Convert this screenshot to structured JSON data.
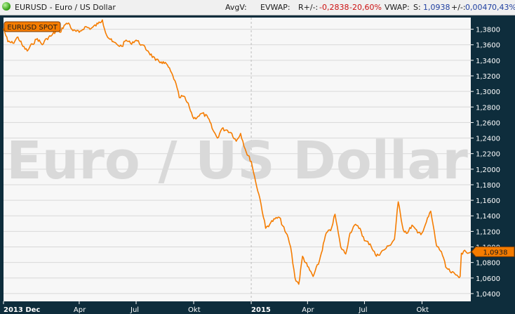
{
  "header": {
    "title": "EURUSD - Euro / US Dollar",
    "avgv_label": "AvgV:",
    "evwap_label": "EVWAP:",
    "range_label": "R+/-:",
    "range_abs": "-0,2838",
    "range_pct": "-20,60%",
    "vwap_label": "VWAP:",
    "s_label": "S:",
    "s_value": "1,0938",
    "change_label": "+/-:",
    "change_abs": "0,0047",
    "change_pct": "0,43%"
  },
  "colors": {
    "line": "#f57c00",
    "plot_bg": "#f7f7f7",
    "frame": "#0e2d3c",
    "grid": "#d8d8d8",
    "watermark": "#d9d9d9",
    "positive": "#1f3fa0",
    "negative": "#cc1010"
  },
  "chart_data": {
    "type": "line",
    "series_label": "EURUSD SPOT",
    "watermark": "Euro / US Dollar",
    "last_value": 1.0938,
    "last_value_label": "1,0938",
    "x_axis": {
      "start": "2013-12-01",
      "end": "2015-12-18",
      "ticks": [
        {
          "date": "2013-12-01",
          "label": "2013 Dec",
          "bold": true
        },
        {
          "date": "2014-04-01",
          "label": "Apr",
          "bold": false
        },
        {
          "date": "2014-07-01",
          "label": "Jul",
          "bold": false
        },
        {
          "date": "2014-10-01",
          "label": "Okt",
          "bold": false
        },
        {
          "date": "2015-01-01",
          "label": "2015",
          "bold": true
        },
        {
          "date": "2015-04-01",
          "label": "Apr",
          "bold": false
        },
        {
          "date": "2015-07-01",
          "label": "Jul",
          "bold": false
        },
        {
          "date": "2015-10-01",
          "label": "Okt",
          "bold": false
        }
      ]
    },
    "y_axis": {
      "min": 1.03,
      "max": 1.395,
      "ticks": [
        1.04,
        1.06,
        1.08,
        1.1,
        1.12,
        1.14,
        1.16,
        1.18,
        1.2,
        1.22,
        1.24,
        1.26,
        1.28,
        1.3,
        1.32,
        1.34,
        1.36,
        1.38
      ],
      "tick_labels": [
        "1,0400",
        "1,0600",
        "1,0800",
        "1,1000",
        "1,1200",
        "1,1400",
        "1,1600",
        "1,1800",
        "1,2000",
        "1,2200",
        "1,2400",
        "1,2600",
        "1,2800",
        "1,3000",
        "1,3200",
        "1,3400",
        "1,3600",
        "1,3800"
      ]
    },
    "points": [
      [
        "2013-12-01",
        1.381
      ],
      [
        "2013-12-08",
        1.364
      ],
      [
        "2013-12-16",
        1.362
      ],
      [
        "2013-12-24",
        1.37
      ],
      [
        "2014-01-01",
        1.358
      ],
      [
        "2014-01-08",
        1.352
      ],
      [
        "2014-01-16",
        1.361
      ],
      [
        "2014-01-24",
        1.368
      ],
      [
        "2014-02-01",
        1.36
      ],
      [
        "2014-02-08",
        1.368
      ],
      [
        "2014-02-16",
        1.372
      ],
      [
        "2014-02-24",
        1.378
      ],
      [
        "2014-03-01",
        1.376
      ],
      [
        "2014-03-08",
        1.385
      ],
      [
        "2014-03-15",
        1.388
      ],
      [
        "2014-03-22",
        1.378
      ],
      [
        "2014-04-01",
        1.376
      ],
      [
        "2014-04-10",
        1.383
      ],
      [
        "2014-04-20",
        1.381
      ],
      [
        "2014-05-01",
        1.387
      ],
      [
        "2014-05-08",
        1.392
      ],
      [
        "2014-05-15",
        1.372
      ],
      [
        "2014-05-24",
        1.364
      ],
      [
        "2014-06-01",
        1.36
      ],
      [
        "2014-06-08",
        1.358
      ],
      [
        "2014-06-15",
        1.366
      ],
      [
        "2014-06-22",
        1.362
      ],
      [
        "2014-07-01",
        1.366
      ],
      [
        "2014-07-10",
        1.36
      ],
      [
        "2014-07-20",
        1.352
      ],
      [
        "2014-08-01",
        1.34
      ],
      [
        "2014-08-10",
        1.338
      ],
      [
        "2014-08-20",
        1.334
      ],
      [
        "2014-09-01",
        1.314
      ],
      [
        "2014-09-08",
        1.292
      ],
      [
        "2014-09-15",
        1.294
      ],
      [
        "2014-09-24",
        1.28
      ],
      [
        "2014-10-01",
        1.265
      ],
      [
        "2014-10-08",
        1.268
      ],
      [
        "2014-10-15",
        1.272
      ],
      [
        "2014-10-24",
        1.266
      ],
      [
        "2014-11-01",
        1.25
      ],
      [
        "2014-11-08",
        1.24
      ],
      [
        "2014-11-15",
        1.252
      ],
      [
        "2014-11-24",
        1.25
      ],
      [
        "2014-12-01",
        1.246
      ],
      [
        "2014-12-08",
        1.236
      ],
      [
        "2014-12-15",
        1.246
      ],
      [
        "2014-12-24",
        1.222
      ],
      [
        "2015-01-01",
        1.21
      ],
      [
        "2015-01-08",
        1.184
      ],
      [
        "2015-01-15",
        1.162
      ],
      [
        "2015-01-24",
        1.124
      ],
      [
        "2015-02-01",
        1.131
      ],
      [
        "2015-02-08",
        1.136
      ],
      [
        "2015-02-15",
        1.138
      ],
      [
        "2015-02-24",
        1.12
      ],
      [
        "2015-03-01",
        1.112
      ],
      [
        "2015-03-05",
        1.1
      ],
      [
        "2015-03-12",
        1.06
      ],
      [
        "2015-03-18",
        1.052
      ],
      [
        "2015-03-24",
        1.088
      ],
      [
        "2015-04-01",
        1.075
      ],
      [
        "2015-04-10",
        1.062
      ],
      [
        "2015-04-20",
        1.082
      ],
      [
        "2015-05-01",
        1.118
      ],
      [
        "2015-05-08",
        1.121
      ],
      [
        "2015-05-15",
        1.142
      ],
      [
        "2015-05-24",
        1.1
      ],
      [
        "2015-06-01",
        1.091
      ],
      [
        "2015-06-08",
        1.118
      ],
      [
        "2015-06-15",
        1.128
      ],
      [
        "2015-06-24",
        1.124
      ],
      [
        "2015-07-01",
        1.108
      ],
      [
        "2015-07-10",
        1.104
      ],
      [
        "2015-07-20",
        1.088
      ],
      [
        "2015-08-01",
        1.096
      ],
      [
        "2015-08-10",
        1.102
      ],
      [
        "2015-08-18",
        1.11
      ],
      [
        "2015-08-24",
        1.158
      ],
      [
        "2015-09-01",
        1.122
      ],
      [
        "2015-09-08",
        1.118
      ],
      [
        "2015-09-15",
        1.128
      ],
      [
        "2015-09-24",
        1.118
      ],
      [
        "2015-10-01",
        1.118
      ],
      [
        "2015-10-08",
        1.132
      ],
      [
        "2015-10-15",
        1.146
      ],
      [
        "2015-10-24",
        1.102
      ],
      [
        "2015-11-01",
        1.094
      ],
      [
        "2015-11-08",
        1.074
      ],
      [
        "2015-11-15",
        1.068
      ],
      [
        "2015-11-24",
        1.064
      ],
      [
        "2015-12-01",
        1.062
      ],
      [
        "2015-12-03",
        1.092
      ],
      [
        "2015-12-10",
        1.094
      ],
      [
        "2015-12-18",
        1.0938
      ]
    ]
  }
}
